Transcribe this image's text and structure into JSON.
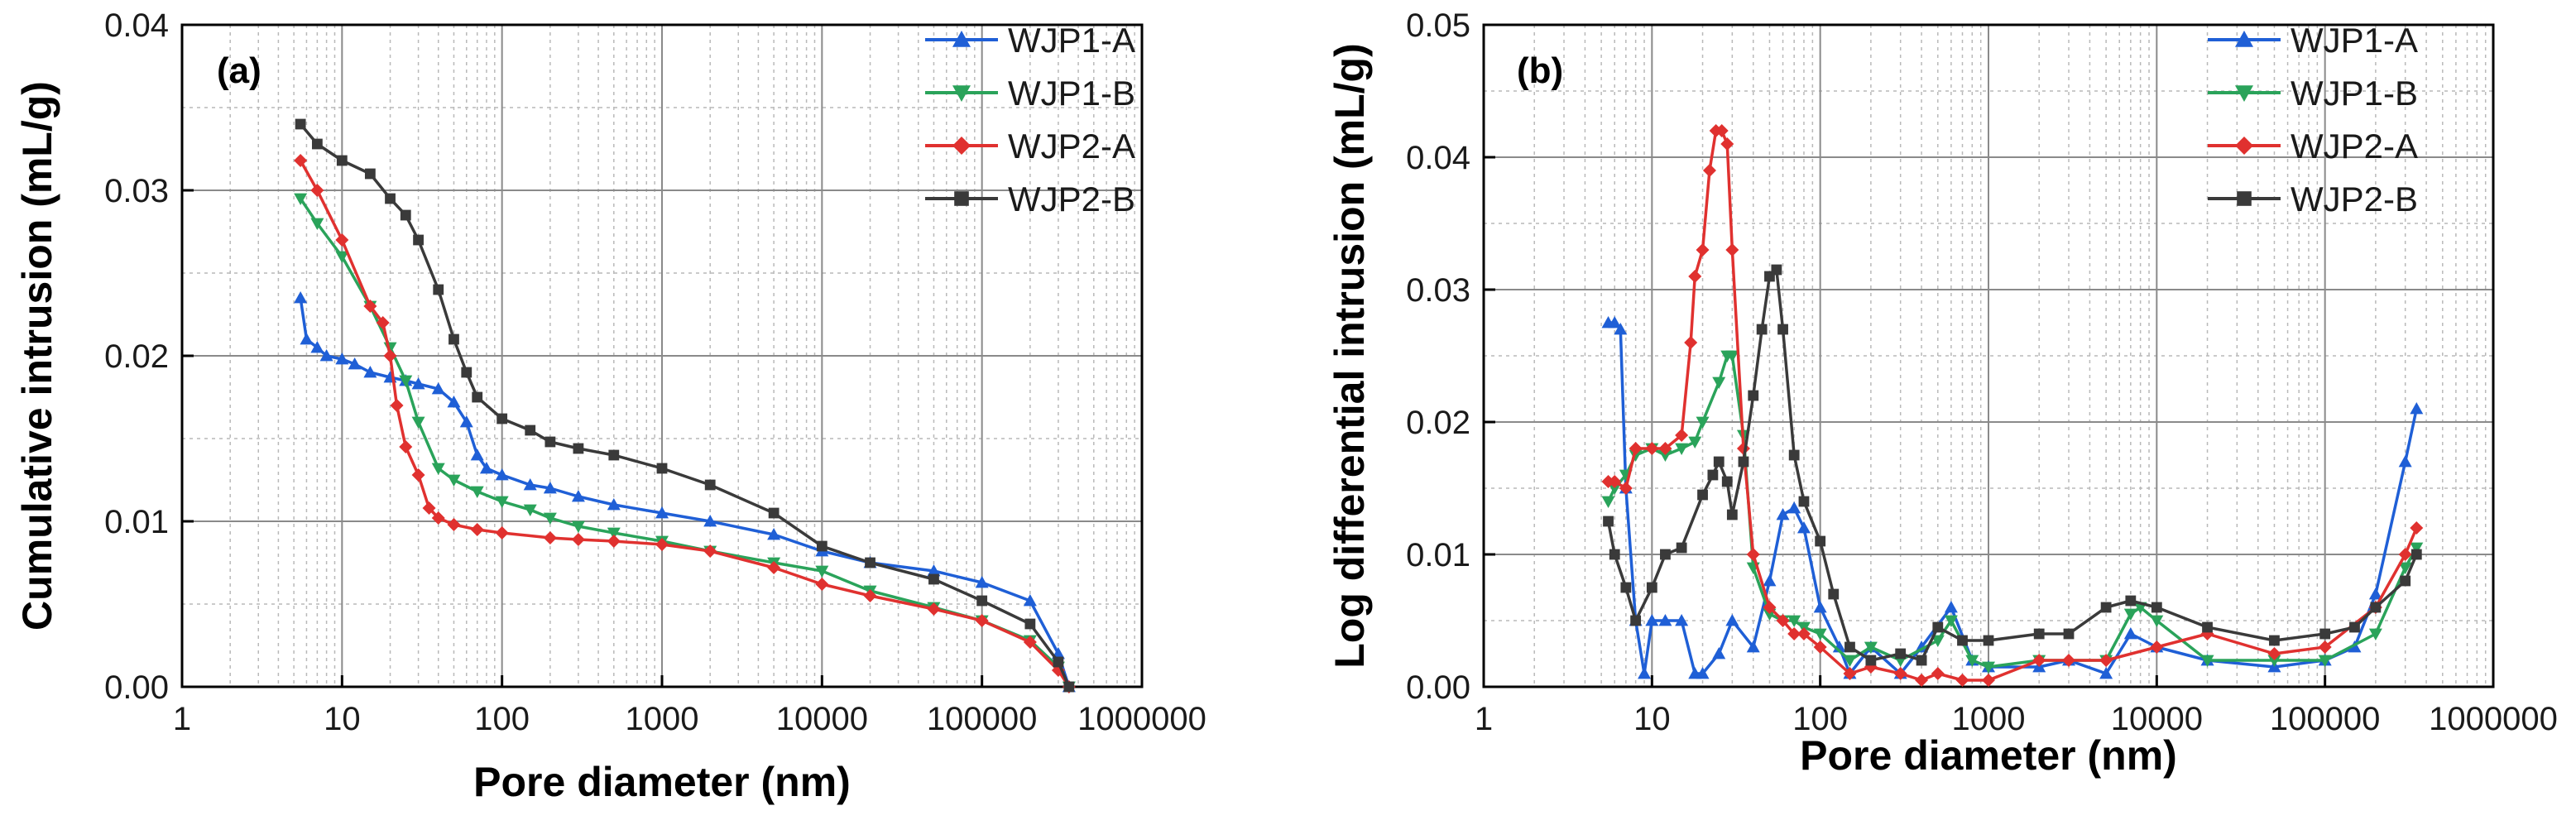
{
  "chart_data": [
    {
      "type": "line",
      "panel_label": "(a)",
      "xlabel": "Pore diameter (nm)",
      "ylabel": "Cumulative intrusion (mL/g)",
      "xscale": "log",
      "xlim": [
        1,
        1000000
      ],
      "ylim": [
        0,
        0.04
      ],
      "x_tick_labels": [
        "1",
        "10",
        "100",
        "1000",
        "10000",
        "100000",
        "1000000"
      ],
      "y_tick_labels": [
        "0.00",
        "0.01",
        "0.02",
        "0.03",
        "0.04"
      ],
      "grid": true,
      "legend_position": "top-right",
      "series": [
        {
          "name": "WJP1-A",
          "color": "#1f5fd6",
          "marker": "triangle-up",
          "x": [
            5.5,
            6,
            7,
            8,
            10,
            12,
            15,
            20,
            25,
            30,
            40,
            50,
            60,
            70,
            80,
            100,
            150,
            200,
            300,
            500,
            1000,
            2000,
            5000,
            10000,
            20000,
            50000,
            100000,
            200000,
            300000,
            350000
          ],
          "y": [
            0.0235,
            0.021,
            0.0205,
            0.02,
            0.0198,
            0.0195,
            0.019,
            0.0187,
            0.0185,
            0.0183,
            0.018,
            0.0172,
            0.016,
            0.014,
            0.0132,
            0.0128,
            0.0122,
            0.012,
            0.0115,
            0.011,
            0.0105,
            0.01,
            0.0092,
            0.0082,
            0.0075,
            0.007,
            0.0063,
            0.0052,
            0.002,
            0.0
          ]
        },
        {
          "name": "WJP1-B",
          "color": "#2aa35a",
          "marker": "triangle-down",
          "x": [
            5.5,
            7,
            10,
            15,
            20,
            25,
            30,
            40,
            50,
            70,
            100,
            150,
            200,
            300,
            500,
            1000,
            2000,
            5000,
            10000,
            20000,
            50000,
            100000,
            200000,
            300000,
            350000
          ],
          "y": [
            0.0295,
            0.028,
            0.026,
            0.023,
            0.0205,
            0.0185,
            0.016,
            0.0132,
            0.0125,
            0.0118,
            0.0112,
            0.0107,
            0.0102,
            0.0097,
            0.0093,
            0.0088,
            0.0082,
            0.0075,
            0.007,
            0.0058,
            0.0048,
            0.004,
            0.0028,
            0.0012,
            0.0
          ]
        },
        {
          "name": "WJP2-A",
          "color": "#e0312f",
          "marker": "diamond",
          "x": [
            5.5,
            7,
            10,
            15,
            18,
            20,
            22,
            25,
            30,
            35,
            40,
            50,
            70,
            100,
            200,
            300,
            500,
            1000,
            2000,
            5000,
            10000,
            20000,
            50000,
            100000,
            200000,
            300000,
            350000
          ],
          "y": [
            0.0318,
            0.03,
            0.027,
            0.023,
            0.022,
            0.02,
            0.017,
            0.0145,
            0.0128,
            0.0108,
            0.0102,
            0.0098,
            0.0095,
            0.0093,
            0.009,
            0.0089,
            0.0088,
            0.0086,
            0.0082,
            0.0072,
            0.0062,
            0.0055,
            0.0047,
            0.004,
            0.0027,
            0.001,
            0.0
          ]
        },
        {
          "name": "WJP2-B",
          "color": "#3a3a3a",
          "marker": "square",
          "x": [
            5.5,
            7,
            10,
            15,
            20,
            25,
            30,
            40,
            50,
            60,
            70,
            100,
            150,
            200,
            300,
            500,
            1000,
            2000,
            5000,
            10000,
            20000,
            50000,
            100000,
            200000,
            300000,
            350000
          ],
          "y": [
            0.034,
            0.0328,
            0.0318,
            0.031,
            0.0295,
            0.0285,
            0.027,
            0.024,
            0.021,
            0.019,
            0.0175,
            0.0162,
            0.0155,
            0.0148,
            0.0144,
            0.014,
            0.0132,
            0.0122,
            0.0105,
            0.0085,
            0.0075,
            0.0065,
            0.0052,
            0.0038,
            0.0015,
            0.0
          ]
        }
      ]
    },
    {
      "type": "line",
      "panel_label": "(b)",
      "xlabel": "Pore diameter (nm)",
      "ylabel": "Log differential intrusion (mL/g)",
      "xscale": "log",
      "xlim": [
        1,
        1000000
      ],
      "ylim": [
        0,
        0.05
      ],
      "x_tick_labels": [
        "1",
        "10",
        "100",
        "1000",
        "10000",
        "100000",
        "1000000"
      ],
      "y_tick_labels": [
        "0.00",
        "0.01",
        "0.02",
        "0.03",
        "0.04",
        "0.05"
      ],
      "grid": true,
      "legend_position": "top-right",
      "series": [
        {
          "name": "WJP1-A",
          "color": "#1f5fd6",
          "marker": "triangle-up",
          "x": [
            5.5,
            6,
            6.5,
            7,
            8,
            9,
            10,
            12,
            15,
            18,
            20,
            25,
            30,
            40,
            50,
            60,
            70,
            80,
            100,
            130,
            150,
            200,
            300,
            400,
            600,
            800,
            1000,
            2000,
            3000,
            5000,
            7000,
            10000,
            20000,
            50000,
            100000,
            150000,
            200000,
            300000,
            350000
          ],
          "y": [
            0.0275,
            0.0275,
            0.027,
            0.015,
            0.005,
            0.001,
            0.005,
            0.005,
            0.005,
            0.001,
            0.001,
            0.0025,
            0.005,
            0.003,
            0.008,
            0.013,
            0.0135,
            0.012,
            0.006,
            0.003,
            0.001,
            0.003,
            0.001,
            0.003,
            0.006,
            0.002,
            0.0015,
            0.0015,
            0.002,
            0.001,
            0.004,
            0.003,
            0.002,
            0.0015,
            0.002,
            0.003,
            0.007,
            0.017,
            0.021
          ]
        },
        {
          "name": "WJP1-B",
          "color": "#2aa35a",
          "marker": "triangle-down",
          "x": [
            5.5,
            6,
            7,
            8,
            10,
            12,
            15,
            18,
            20,
            25,
            28,
            30,
            35,
            40,
            50,
            60,
            70,
            80,
            100,
            150,
            200,
            300,
            500,
            600,
            800,
            1000,
            2000,
            5000,
            7000,
            8000,
            10000,
            20000,
            50000,
            100000,
            200000,
            300000,
            350000
          ],
          "y": [
            0.014,
            0.015,
            0.016,
            0.0175,
            0.018,
            0.0175,
            0.018,
            0.0185,
            0.02,
            0.023,
            0.025,
            0.025,
            0.019,
            0.009,
            0.0055,
            0.005,
            0.005,
            0.0045,
            0.004,
            0.002,
            0.003,
            0.002,
            0.0035,
            0.005,
            0.002,
            0.0015,
            0.002,
            0.002,
            0.0055,
            0.006,
            0.005,
            0.002,
            0.002,
            0.002,
            0.004,
            0.009,
            0.0105
          ]
        },
        {
          "name": "WJP2-A",
          "color": "#e0312f",
          "marker": "diamond",
          "x": [
            5.5,
            6,
            7,
            8,
            10,
            12,
            15,
            17,
            18,
            20,
            22,
            24,
            26,
            28,
            30,
            35,
            40,
            50,
            60,
            70,
            80,
            100,
            150,
            200,
            300,
            400,
            500,
            700,
            1000,
            2000,
            3000,
            5000,
            10000,
            20000,
            50000,
            100000,
            200000,
            300000,
            350000
          ],
          "y": [
            0.0155,
            0.0155,
            0.015,
            0.018,
            0.018,
            0.018,
            0.019,
            0.026,
            0.031,
            0.033,
            0.039,
            0.042,
            0.042,
            0.041,
            0.033,
            0.018,
            0.01,
            0.006,
            0.005,
            0.004,
            0.004,
            0.003,
            0.001,
            0.0015,
            0.001,
            0.0005,
            0.001,
            0.0005,
            0.0005,
            0.002,
            0.002,
            0.002,
            0.003,
            0.004,
            0.0025,
            0.003,
            0.006,
            0.01,
            0.012
          ]
        },
        {
          "name": "WJP2-B",
          "color": "#3a3a3a",
          "marker": "square",
          "x": [
            5.5,
            6,
            7,
            8,
            10,
            12,
            15,
            20,
            23,
            25,
            28,
            30,
            35,
            40,
            45,
            50,
            55,
            60,
            70,
            80,
            100,
            120,
            150,
            200,
            300,
            400,
            500,
            700,
            1000,
            2000,
            3000,
            5000,
            7000,
            10000,
            20000,
            50000,
            100000,
            150000,
            200000,
            300000,
            350000
          ],
          "y": [
            0.0125,
            0.01,
            0.0075,
            0.005,
            0.0075,
            0.01,
            0.0105,
            0.0145,
            0.016,
            0.017,
            0.0155,
            0.013,
            0.017,
            0.022,
            0.027,
            0.031,
            0.0315,
            0.027,
            0.0175,
            0.014,
            0.011,
            0.007,
            0.003,
            0.002,
            0.0025,
            0.002,
            0.0045,
            0.0035,
            0.0035,
            0.004,
            0.004,
            0.006,
            0.0065,
            0.006,
            0.0045,
            0.0035,
            0.004,
            0.0045,
            0.006,
            0.008,
            0.01
          ]
        }
      ]
    }
  ]
}
